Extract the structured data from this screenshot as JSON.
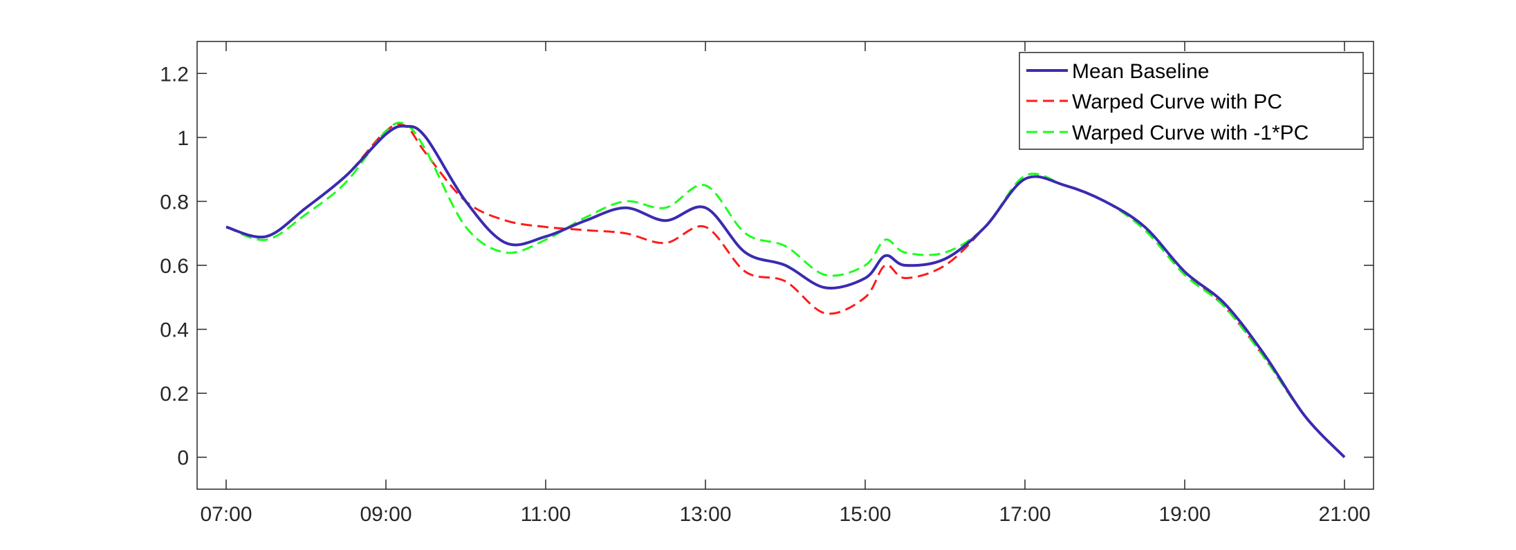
{
  "chart_data": {
    "type": "line",
    "title": "",
    "xlabel": "",
    "ylabel": "",
    "x_unit": "time of day",
    "xlim": [
      "07:00",
      "21:00"
    ],
    "ylim": [
      -0.1,
      1.3
    ],
    "xticks": [
      "07:00",
      "09:00",
      "11:00",
      "13:00",
      "15:00",
      "17:00",
      "19:00",
      "21:00"
    ],
    "yticks": [
      "0",
      "0.2",
      "0.4",
      "0.6",
      "0.8",
      "1",
      "1.2"
    ],
    "grid": false,
    "legend_position": "top-right",
    "x": [
      "07:00",
      "07:30",
      "08:00",
      "08:30",
      "09:00",
      "09:15",
      "09:30",
      "10:00",
      "10:30",
      "11:00",
      "11:30",
      "12:00",
      "12:30",
      "13:00",
      "13:30",
      "14:00",
      "14:30",
      "15:00",
      "15:15",
      "15:30",
      "16:00",
      "16:30",
      "17:00",
      "17:30",
      "18:00",
      "18:30",
      "19:00",
      "19:30",
      "20:00",
      "20:30",
      "21:00"
    ],
    "series": [
      {
        "name": "Mean Baseline",
        "color": "#3a2bb0",
        "dash": "solid",
        "values": [
          0.72,
          0.69,
          0.78,
          0.88,
          1.01,
          1.035,
          1.0,
          0.8,
          0.67,
          0.69,
          0.74,
          0.78,
          0.74,
          0.78,
          0.64,
          0.6,
          0.53,
          0.56,
          0.63,
          0.6,
          0.62,
          0.72,
          0.87,
          0.85,
          0.8,
          0.72,
          0.58,
          0.48,
          0.32,
          0.13,
          0.0
        ]
      },
      {
        "name": "Warped Curve with PC",
        "color": "#ff1a1a",
        "dash": "dashed",
        "values": [
          0.72,
          0.69,
          0.78,
          0.88,
          1.02,
          1.035,
          0.95,
          0.8,
          0.74,
          0.72,
          0.71,
          0.7,
          0.67,
          0.72,
          0.58,
          0.55,
          0.45,
          0.5,
          0.6,
          0.56,
          0.6,
          0.72,
          0.87,
          0.85,
          0.8,
          0.72,
          0.58,
          0.47,
          0.31,
          0.13,
          0.0
        ]
      },
      {
        "name": "Warped Curve with -1*PC",
        "color": "#1aff1a",
        "dash": "dashed",
        "values": [
          0.72,
          0.68,
          0.76,
          0.86,
          1.02,
          1.04,
          0.96,
          0.72,
          0.64,
          0.68,
          0.75,
          0.8,
          0.78,
          0.85,
          0.7,
          0.66,
          0.57,
          0.6,
          0.68,
          0.64,
          0.64,
          0.72,
          0.88,
          0.85,
          0.8,
          0.71,
          0.57,
          0.47,
          0.31,
          0.13,
          0.0
        ]
      }
    ]
  }
}
